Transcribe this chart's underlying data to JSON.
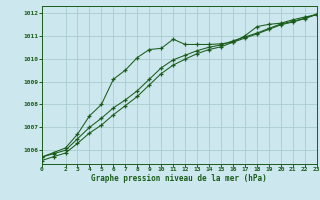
{
  "title": "Graphe pression niveau de la mer (hPa)",
  "bg_color": "#cce8ee",
  "grid_color": "#aacccc",
  "line_color": "#1a5c1a",
  "xlim": [
    0,
    23
  ],
  "ylim": [
    1005.4,
    1012.3
  ],
  "yticks": [
    1006,
    1007,
    1008,
    1009,
    1010,
    1011,
    1012
  ],
  "xticks": [
    0,
    2,
    3,
    4,
    5,
    6,
    7,
    8,
    9,
    10,
    11,
    12,
    13,
    14,
    15,
    16,
    17,
    18,
    19,
    20,
    21,
    22,
    23
  ],
  "series1": [
    1005.7,
    1005.9,
    1006.1,
    1006.7,
    1007.5,
    1008.0,
    1009.1,
    1009.5,
    1010.05,
    1010.4,
    1010.45,
    1010.85,
    1010.62,
    1010.62,
    1010.62,
    1010.65,
    1010.72,
    1011.0,
    1011.4,
    1011.5,
    1011.55,
    1011.7,
    1011.82,
    1011.92
  ],
  "series2": [
    1005.7,
    1005.85,
    1006.0,
    1006.5,
    1007.0,
    1007.4,
    1007.85,
    1008.2,
    1008.6,
    1009.1,
    1009.6,
    1009.95,
    1010.15,
    1010.35,
    1010.5,
    1010.6,
    1010.78,
    1010.95,
    1011.12,
    1011.32,
    1011.52,
    1011.63,
    1011.77,
    1011.95
  ],
  "series3": [
    1005.55,
    1005.72,
    1005.88,
    1006.3,
    1006.75,
    1007.1,
    1007.55,
    1007.95,
    1008.35,
    1008.85,
    1009.35,
    1009.72,
    1009.98,
    1010.22,
    1010.4,
    1010.52,
    1010.72,
    1010.9,
    1011.08,
    1011.28,
    1011.48,
    1011.6,
    1011.75,
    1011.93
  ]
}
